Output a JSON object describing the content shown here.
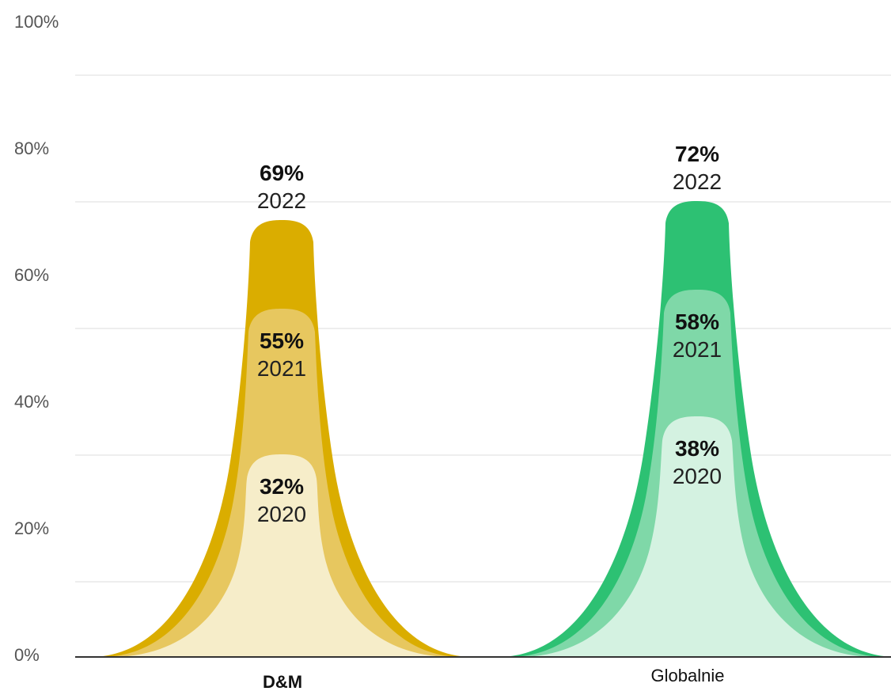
{
  "chart_data": {
    "type": "area",
    "categories": [
      "D&M",
      "Globalnie"
    ],
    "ylim": [
      0,
      100
    ],
    "yticks": [
      0,
      20,
      40,
      60,
      80,
      100
    ],
    "ytick_labels": [
      "0%",
      "20%",
      "40%",
      "60%",
      "80%",
      "100%"
    ],
    "grid": true,
    "series": [
      {
        "category": "D&M",
        "colors": [
          "#DAAD00",
          "#E7C75F",
          "#F6EDC9"
        ],
        "peaks": [
          {
            "year": "2022",
            "value": 69,
            "label": "69%"
          },
          {
            "year": "2021",
            "value": 55,
            "label": "55%"
          },
          {
            "year": "2020",
            "value": 32,
            "label": "32%"
          }
        ]
      },
      {
        "category": "Globalnie",
        "colors": [
          "#2DC173",
          "#7FD8A8",
          "#D4F2E1"
        ],
        "peaks": [
          {
            "year": "2022",
            "value": 72,
            "label": "72%"
          },
          {
            "year": "2021",
            "value": 58,
            "label": "58%"
          },
          {
            "year": "2020",
            "value": 38,
            "label": "38%"
          }
        ]
      }
    ]
  }
}
